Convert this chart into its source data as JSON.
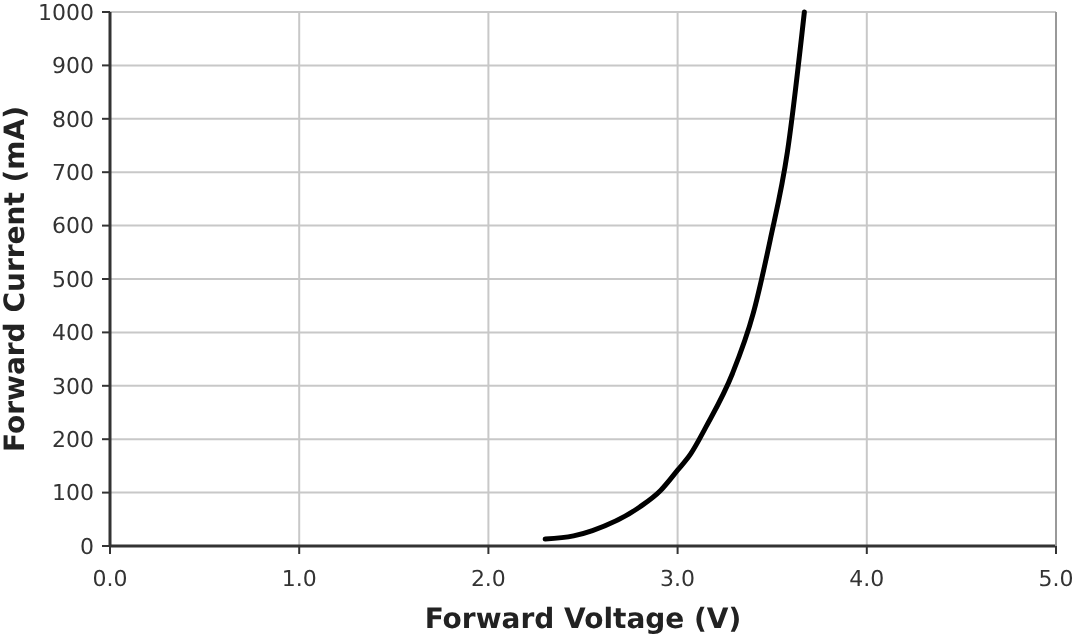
{
  "chart_data": {
    "type": "line",
    "xlabel": "Forward Voltage (V)",
    "ylabel": "Forward Current (mA)",
    "xlim": [
      0,
      5
    ],
    "xticks": [
      {
        "value": 0,
        "label": "0.0"
      },
      {
        "value": 1,
        "label": "1.0"
      },
      {
        "value": 2,
        "label": "2.0"
      },
      {
        "value": 3,
        "label": "3.0"
      },
      {
        "value": 4,
        "label": "4.0"
      },
      {
        "value": 5,
        "label": "5.0"
      }
    ],
    "ylim": [
      0,
      1000
    ],
    "yticks": [
      0,
      100,
      200,
      300,
      400,
      500,
      600,
      700,
      800,
      900,
      1000
    ],
    "grid": true,
    "series": [
      {
        "color": "#000000",
        "x": [
          2.3,
          2.45,
          2.55,
          2.8,
          2.91,
          3.0,
          3.07,
          3.15,
          3.29,
          3.4,
          3.49,
          3.58,
          3.67
        ],
        "values": [
          13,
          19,
          29,
          73,
          104,
          142,
          173,
          223,
          323,
          436,
          574,
          737,
          1000
        ]
      }
    ]
  }
}
